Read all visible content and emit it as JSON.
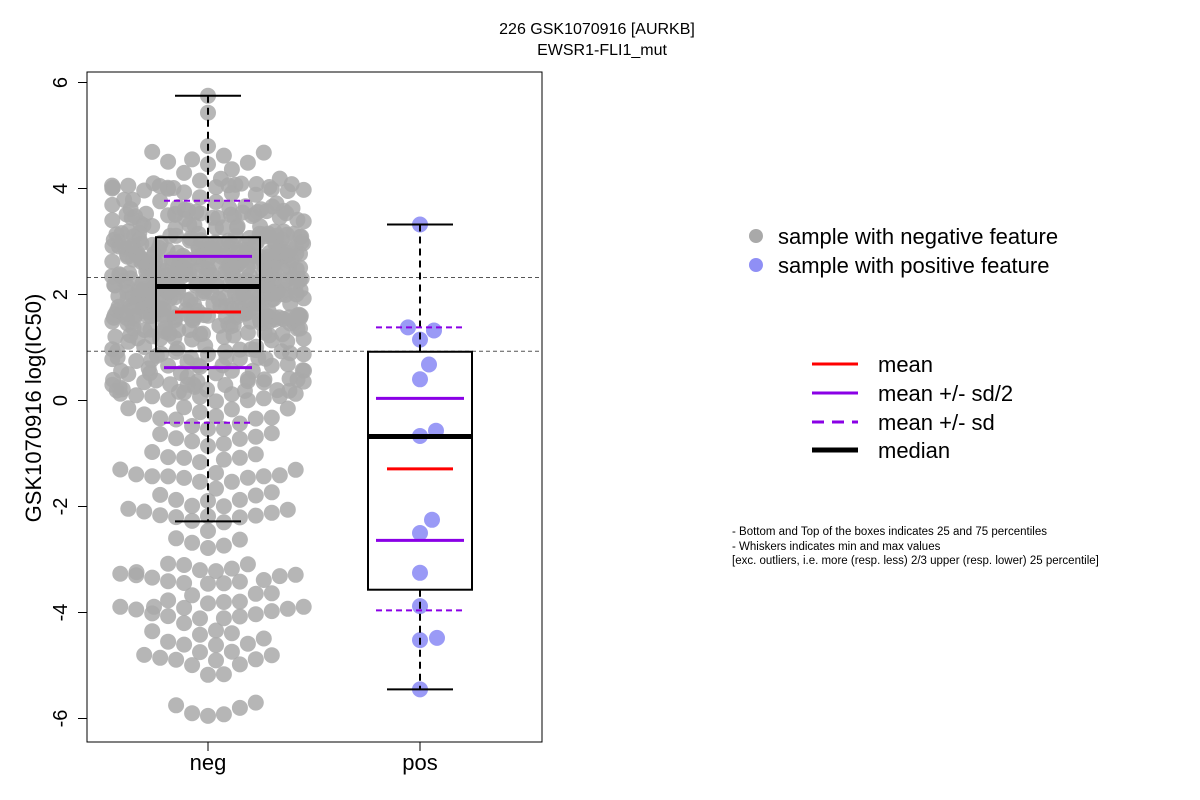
{
  "chart_data": {
    "type": "box+beeswarm",
    "title_line1": "226 GSK1070916 [AURKB]",
    "title_line2": "EWSR1-FLI1_mut",
    "ylabel": "GSK1070916 log(IC50)",
    "xlabel": "",
    "ylim": [
      -6.4,
      6.2
    ],
    "yticks": [
      -6,
      -4,
      -2,
      0,
      2,
      4,
      6
    ],
    "ytick_labels": [
      "-6",
      "-4",
      "-2",
      "0",
      "2",
      "4",
      "6"
    ],
    "categories": [
      "neg",
      "pos"
    ],
    "reference_lines_y": [
      2.32,
      0.93
    ],
    "groups": [
      {
        "name": "neg",
        "color": "#a9a9a9",
        "box": {
          "q1": 0.93,
          "median": 2.15,
          "q3": 3.08,
          "whisker_low": -2.28,
          "whisker_high": 5.75
        },
        "mean": 1.67,
        "sd_half_lines": [
          0.62,
          2.72
        ],
        "sd_lines": [
          -0.42,
          3.77
        ],
        "points_note": "approx. 700 grey points, visible range -5.95 to 5.75"
      },
      {
        "name": "pos",
        "color": "#8f8ff5",
        "box": {
          "q1": -3.57,
          "median": -0.68,
          "q3": 0.92,
          "whisker_low": -5.45,
          "whisker_high": 3.32
        },
        "mean": -1.29,
        "sd_half_lines": [
          -2.64,
          0.04
        ],
        "sd_lines": [
          -3.96,
          1.38
        ],
        "points": [
          3.32,
          1.38,
          1.32,
          1.15,
          0.68,
          0.4,
          -0.57,
          -0.67,
          -2.25,
          -2.5,
          -3.25,
          -3.88,
          -4.48,
          -4.52,
          -5.45
        ]
      }
    ],
    "legend_points": [
      {
        "label": "sample with negative feature",
        "color": "#a9a9a9"
      },
      {
        "label": "sample with positive feature",
        "color": "#8f8ff5"
      }
    ],
    "legend_lines": [
      {
        "label": "mean",
        "color": "#ff0000",
        "style": "solid"
      },
      {
        "label": "mean +/- sd/2",
        "color": "#8a00e6",
        "style": "solid"
      },
      {
        "label": "mean +/- sd",
        "color": "#8a00e6",
        "style": "dashed"
      },
      {
        "label": "median",
        "color": "#000000",
        "style": "solid-thick"
      }
    ],
    "notes": [
      "- Bottom and Top of the boxes indicates 25 and 75 percentiles",
      "- Whiskers indicates min and max values",
      "[exc. outliers, i.e. more (resp. less) 2/3 upper (resp. lower) 25 percentile]"
    ]
  }
}
